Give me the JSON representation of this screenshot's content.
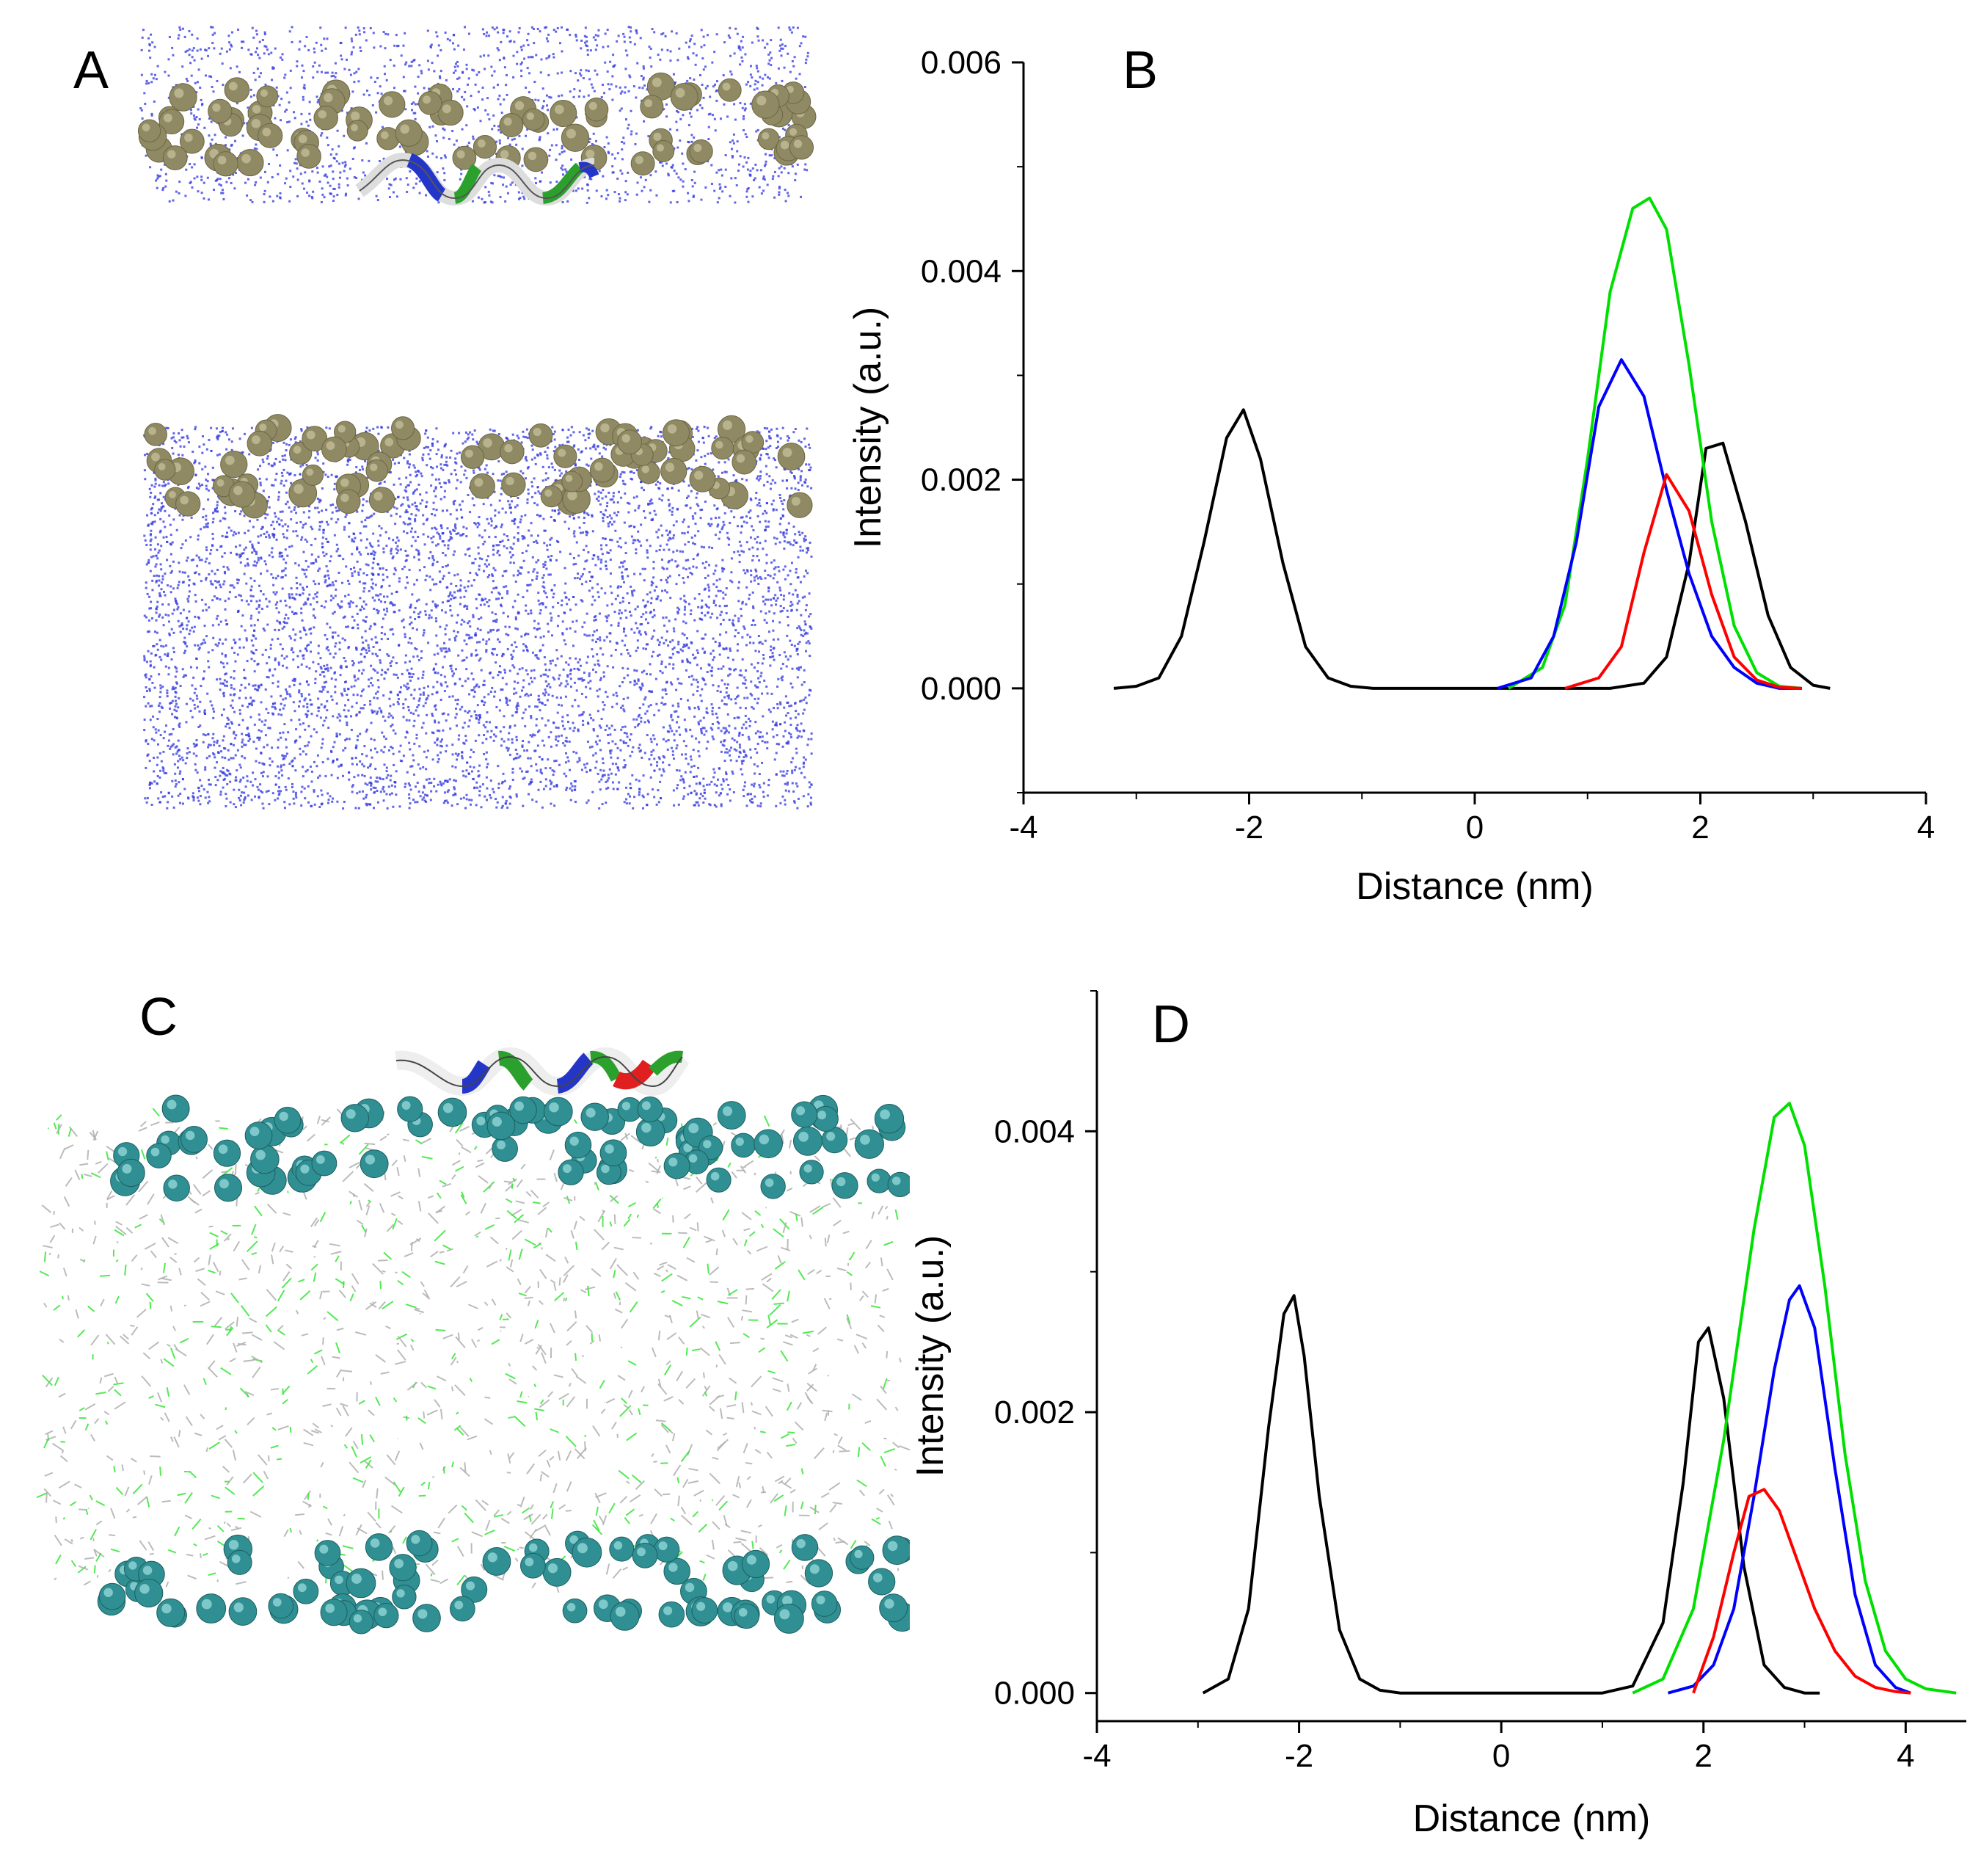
{
  "panels": {
    "A": {
      "label": "A"
    },
    "B": {
      "label": "B"
    },
    "C": {
      "label": "C"
    },
    "D": {
      "label": "D"
    }
  },
  "colors": {
    "water": "#3a3ee0",
    "headgroup_A": "#8f8a63",
    "headgroup_C": "#2f8f92",
    "lipid_gray": "#b0b0b0",
    "lipid_green": "#36e636",
    "helix_white": "#f2f2f2",
    "helix_blue": "#2436c8",
    "helix_green": "#2ca02c",
    "helix_red": "#e02020"
  },
  "chart_data": [
    {
      "id": "B",
      "type": "line",
      "title": "",
      "xlabel": "Distance (nm)",
      "ylabel": "Intensity (a.u.)",
      "xlim": [
        -4,
        4
      ],
      "ylim": [
        -0.001,
        0.006
      ],
      "xticks": [
        "-4",
        "-2",
        "0",
        "2",
        "4"
      ],
      "xtick_values": [
        -4,
        -2,
        0,
        2,
        4
      ],
      "yticks": [
        "0.000",
        "0.002",
        "0.004",
        "0.006"
      ],
      "ytick_values": [
        0,
        0.002,
        0.004,
        0.006
      ],
      "series": [
        {
          "name": "black",
          "color": "#000000",
          "x": [
            -3.2,
            -3.0,
            -2.8,
            -2.6,
            -2.4,
            -2.2,
            -2.05,
            -1.9,
            -1.7,
            -1.5,
            -1.3,
            -1.1,
            -0.9,
            0.0,
            1.2,
            1.5,
            1.7,
            1.9,
            2.05,
            2.2,
            2.4,
            2.6,
            2.8,
            3.0,
            3.15
          ],
          "y": [
            0,
            2e-05,
            0.0001,
            0.0005,
            0.0014,
            0.0024,
            0.00267,
            0.0022,
            0.0012,
            0.0004,
            0.0001,
            2e-05,
            0,
            0,
            0,
            5e-05,
            0.0003,
            0.0012,
            0.0023,
            0.00235,
            0.0016,
            0.0007,
            0.0002,
            3e-05,
            0
          ]
        },
        {
          "name": "green",
          "color": "#00e000",
          "x": [
            0.3,
            0.6,
            0.8,
            1.0,
            1.2,
            1.4,
            1.55,
            1.7,
            1.9,
            2.1,
            2.3,
            2.5,
            2.7,
            2.9
          ],
          "y": [
            0,
            0.0002,
            0.0008,
            0.0022,
            0.0038,
            0.0046,
            0.0047,
            0.0044,
            0.0031,
            0.0016,
            0.0006,
            0.00015,
            2e-05,
            0
          ]
        },
        {
          "name": "blue",
          "color": "#0000ff",
          "x": [
            0.2,
            0.5,
            0.7,
            0.9,
            1.1,
            1.3,
            1.5,
            1.7,
            1.9,
            2.1,
            2.3,
            2.5,
            2.7,
            2.9
          ],
          "y": [
            0,
            0.0001,
            0.0005,
            0.0014,
            0.0027,
            0.00315,
            0.0028,
            0.0019,
            0.0011,
            0.0005,
            0.0002,
            5e-05,
            0,
            0
          ]
        },
        {
          "name": "red",
          "color": "#ff0000",
          "x": [
            0.8,
            1.1,
            1.3,
            1.5,
            1.7,
            1.9,
            2.1,
            2.3,
            2.5,
            2.7,
            2.9
          ],
          "y": [
            0,
            0.0001,
            0.0004,
            0.0013,
            0.00205,
            0.0017,
            0.0009,
            0.0003,
            8e-05,
            1e-05,
            0
          ]
        }
      ]
    },
    {
      "id": "D",
      "type": "line",
      "title": "",
      "xlabel": "Distance (nm)",
      "ylabel": "Intensity (a.u.)",
      "xlim": [
        -4,
        4.6
      ],
      "ylim": [
        -0.0002,
        0.005
      ],
      "xticks": [
        "-4",
        "-2",
        "0",
        "2",
        "4"
      ],
      "xtick_values": [
        -4,
        -2,
        0,
        2,
        4
      ],
      "yticks": [
        "0.000",
        "0.002",
        "0.004"
      ],
      "ytick_values": [
        0,
        0.002,
        0.004
      ],
      "series": [
        {
          "name": "black",
          "color": "#000000",
          "x": [
            -2.95,
            -2.7,
            -2.5,
            -2.3,
            -2.15,
            -2.05,
            -1.95,
            -1.8,
            -1.6,
            -1.4,
            -1.2,
            -1.0,
            0.0,
            1.0,
            1.3,
            1.6,
            1.8,
            1.95,
            2.05,
            2.2,
            2.4,
            2.6,
            2.8,
            3.0,
            3.15
          ],
          "y": [
            0,
            0.0001,
            0.0006,
            0.0019,
            0.0027,
            0.00283,
            0.0024,
            0.0014,
            0.00045,
            0.0001,
            2e-05,
            0,
            0,
            0,
            5e-05,
            0.0005,
            0.0015,
            0.0025,
            0.0026,
            0.0021,
            0.0009,
            0.0002,
            4e-05,
            0,
            0
          ]
        },
        {
          "name": "green",
          "color": "#00e000",
          "x": [
            1.3,
            1.6,
            1.9,
            2.2,
            2.5,
            2.7,
            2.85,
            3.0,
            3.2,
            3.4,
            3.6,
            3.8,
            4.0,
            4.2,
            4.5
          ],
          "y": [
            0,
            0.0001,
            0.0006,
            0.0018,
            0.0033,
            0.0041,
            0.0042,
            0.0039,
            0.0029,
            0.0017,
            0.0008,
            0.0003,
            0.0001,
            3e-05,
            0
          ]
        },
        {
          "name": "blue",
          "color": "#0000ff",
          "x": [
            1.65,
            1.9,
            2.1,
            2.3,
            2.5,
            2.7,
            2.85,
            2.95,
            3.1,
            3.3,
            3.5,
            3.7,
            3.9,
            4.05
          ],
          "y": [
            0,
            5e-05,
            0.0002,
            0.0006,
            0.0014,
            0.0023,
            0.0028,
            0.0029,
            0.0026,
            0.0016,
            0.0007,
            0.0002,
            4e-05,
            0
          ]
        },
        {
          "name": "red",
          "color": "#ff0000",
          "x": [
            1.9,
            2.1,
            2.3,
            2.45,
            2.6,
            2.75,
            2.9,
            3.1,
            3.3,
            3.5,
            3.7,
            3.9,
            4.05
          ],
          "y": [
            0,
            0.0004,
            0.001,
            0.0014,
            0.00145,
            0.0013,
            0.001,
            0.0006,
            0.0003,
            0.00012,
            4e-05,
            1e-05,
            0
          ]
        }
      ]
    }
  ]
}
